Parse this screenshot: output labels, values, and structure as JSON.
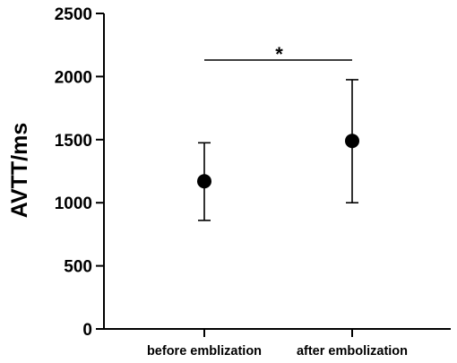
{
  "chart_data": {
    "type": "scatter",
    "categories": [
      "before emblization",
      "after embolization"
    ],
    "series": [
      {
        "values": [
          1170,
          1490
        ],
        "error_low": [
          860,
          1000
        ],
        "error_high": [
          1475,
          1975
        ]
      }
    ],
    "ylabel": "AVTT/ms",
    "ylim": [
      0,
      2500
    ],
    "yticks": [
      0,
      500,
      1000,
      1500,
      2000,
      2500
    ],
    "yticks_labels": [
      "0",
      "500",
      "1000",
      "1500",
      "2000",
      "2500"
    ],
    "grid": false,
    "significance": {
      "between": [
        0,
        1
      ],
      "label": "*"
    }
  }
}
